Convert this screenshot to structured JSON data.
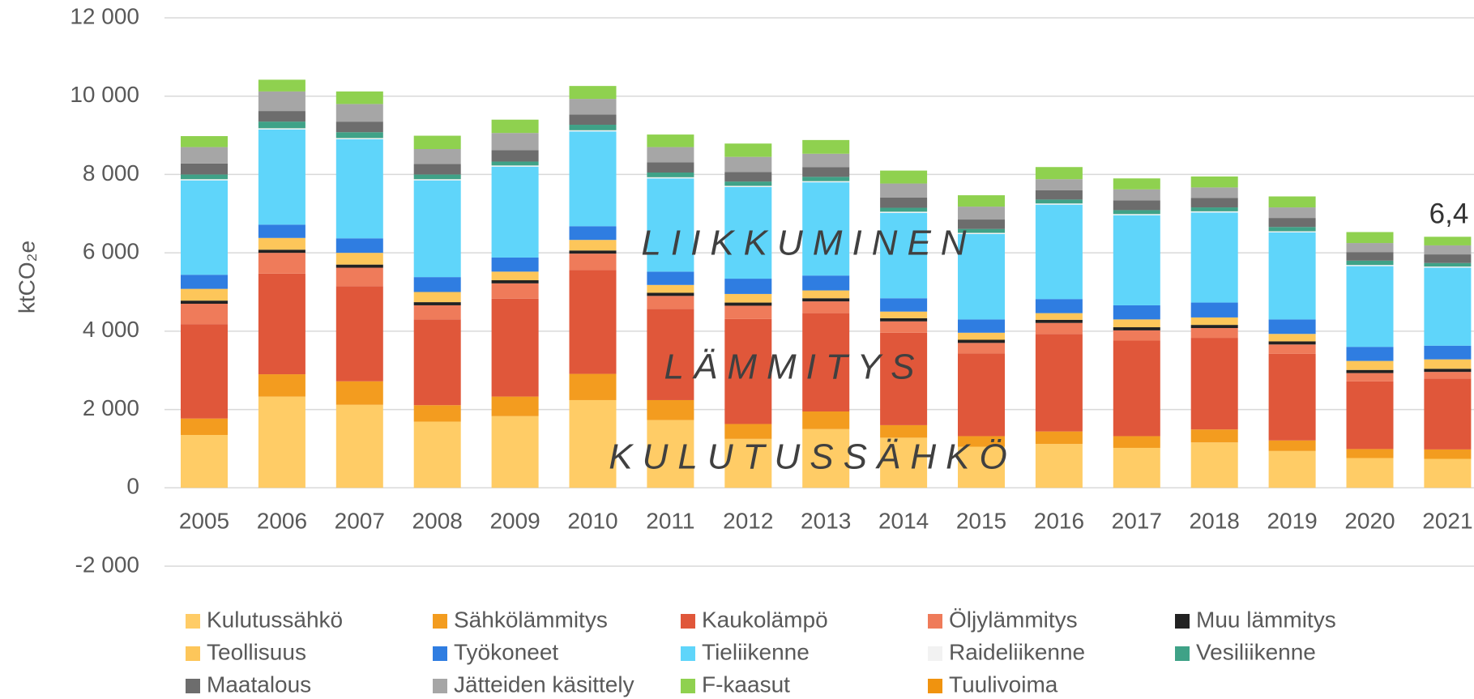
{
  "chart_data": {
    "type": "stacked_bar",
    "ylabel": "ktCO₂e",
    "categories": [
      "2005",
      "2006",
      "2007",
      "2008",
      "2009",
      "2010",
      "2011",
      "2012",
      "2013",
      "2014",
      "2015",
      "2016",
      "2017",
      "2018",
      "2019",
      "2020",
      "2021"
    ],
    "ylim": [
      -2000,
      12000
    ],
    "yticks": [
      {
        "value": -2000,
        "label": "-2 000"
      },
      0,
      {
        "value": 2000,
        "label": "2 000"
      },
      {
        "value": 4000,
        "label": "4 000"
      },
      {
        "value": 6000,
        "label": "6 000"
      },
      {
        "value": 8000,
        "label": "8 000"
      },
      {
        "value": 10000,
        "label": "10 000"
      },
      {
        "value": 12000,
        "label": "12 000"
      }
    ],
    "grid": true,
    "legend": "bottom",
    "annotations": [
      "LIIKKUMINEN",
      "LÄMMITYS",
      "KULUTUSSÄHKÖ",
      "6,4"
    ],
    "series": [
      {
        "name": "Kulutussähkö",
        "color": "#ffcc66",
        "values": [
          1350,
          2330,
          2120,
          1690,
          1830,
          2240,
          1730,
          1250,
          1500,
          1280,
          1050,
          1120,
          1020,
          1160,
          940,
          760,
          740
        ]
      },
      {
        "name": "Sähkölämmitys",
        "color": "#f39c1f",
        "values": [
          420,
          570,
          600,
          420,
          500,
          670,
          510,
          380,
          450,
          320,
          270,
          320,
          300,
          330,
          270,
          230,
          240
        ]
      },
      {
        "name": "Kaukolämpö",
        "color": "#e0573a",
        "values": [
          2410,
          2570,
          2430,
          2190,
          2500,
          2650,
          2330,
          2680,
          2510,
          2360,
          2110,
          2490,
          2440,
          2340,
          2210,
          1730,
          1810
        ]
      },
      {
        "name": "Öljylämmitys",
        "color": "#ef7b5a",
        "values": [
          520,
          530,
          470,
          360,
          390,
          420,
          330,
          340,
          300,
          290,
          270,
          280,
          260,
          250,
          240,
          210,
          170
        ]
      },
      {
        "name": "Muu lämmitys",
        "color": "#222222",
        "values": [
          80,
          80,
          80,
          80,
          80,
          80,
          80,
          80,
          80,
          80,
          80,
          80,
          80,
          80,
          80,
          80,
          80
        ]
      },
      {
        "name": "Teollisuus",
        "color": "#fdc65a",
        "values": [
          300,
          300,
          300,
          260,
          220,
          270,
          200,
          220,
          200,
          170,
          180,
          170,
          200,
          190,
          190,
          230,
          240
        ]
      },
      {
        "name": "Työkoneet",
        "color": "#2f7de1",
        "values": [
          360,
          340,
          370,
          380,
          360,
          350,
          340,
          390,
          380,
          340,
          340,
          360,
          360,
          380,
          370,
          360,
          350
        ]
      },
      {
        "name": "Tieliikenne",
        "color": "#5fd5fa",
        "values": [
          2410,
          2430,
          2530,
          2470,
          2320,
          2420,
          2380,
          2340,
          2380,
          2180,
          2180,
          2410,
          2300,
          2300,
          2220,
          2060,
          1990
        ]
      },
      {
        "name": "Raideliikenne",
        "color": "#f2f2f2",
        "values": [
          30,
          30,
          30,
          30,
          30,
          30,
          30,
          30,
          30,
          30,
          30,
          30,
          30,
          30,
          30,
          30,
          30
        ]
      },
      {
        "name": "Vesiliikenne",
        "color": "#3fa287",
        "values": [
          120,
          170,
          150,
          120,
          100,
          140,
          120,
          110,
          110,
          100,
          100,
          100,
          100,
          100,
          110,
          110,
          90
        ]
      },
      {
        "name": "Maatalous",
        "color": "#6d6d6d",
        "values": [
          280,
          270,
          270,
          270,
          290,
          260,
          260,
          240,
          250,
          260,
          240,
          240,
          250,
          240,
          230,
          220,
          220
        ]
      },
      {
        "name": "Jätteiden käsittely",
        "color": "#a6a6a6",
        "values": [
          420,
          500,
          450,
          380,
          440,
          400,
          390,
          390,
          340,
          360,
          330,
          280,
          280,
          270,
          270,
          230,
          230
        ]
      },
      {
        "name": "F-kaasut",
        "color": "#8fd14f",
        "values": [
          280,
          300,
          320,
          340,
          340,
          330,
          320,
          340,
          350,
          330,
          290,
          310,
          280,
          280,
          280,
          280,
          220
        ]
      },
      {
        "name": "Tuulivoima",
        "color": "#f0930f",
        "values": [
          0,
          0,
          0,
          0,
          0,
          0,
          0,
          0,
          0,
          0,
          0,
          0,
          0,
          0,
          0,
          0,
          0
        ]
      }
    ]
  }
}
